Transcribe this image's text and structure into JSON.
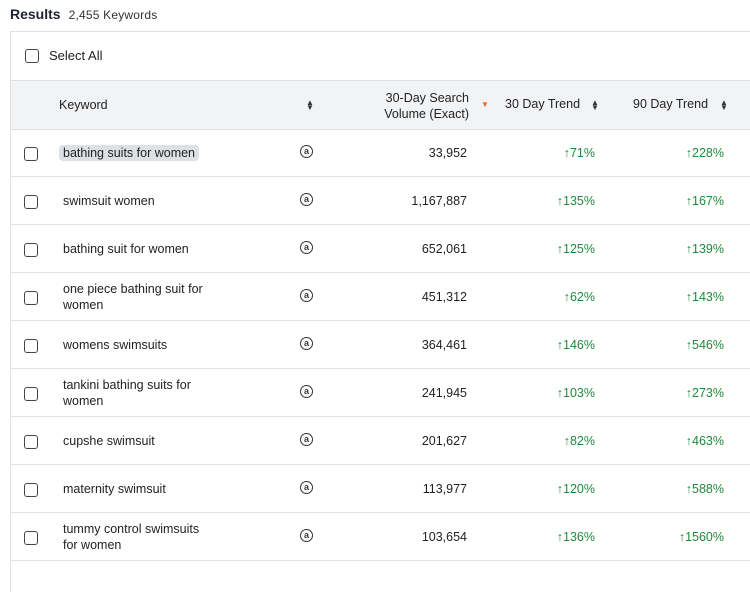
{
  "header": {
    "title": "Results",
    "count": "2,455 Keywords"
  },
  "select_all_label": "Select All",
  "columns": {
    "keyword": "Keyword",
    "volume_line1": "30-Day Search",
    "volume_line2": "Volume (Exact)",
    "trend30": "30 Day Trend",
    "trend90": "90 Day Trend"
  },
  "icons": {
    "sort": "sort-icon",
    "amazon": "amazon-icon",
    "trend_up": "arrow-up-icon"
  },
  "colors": {
    "trend_up": "#1f8a3c",
    "active_sort": "#e8692b",
    "header_bg": "#f2f3f5"
  },
  "rows": [
    {
      "keyword": "bathing suits for women",
      "volume": "33,952",
      "trend30": "71%",
      "trend90": "228%"
    },
    {
      "keyword": "swimsuit women",
      "volume": "1,167,887",
      "trend30": "135%",
      "trend90": "167%"
    },
    {
      "keyword": "bathing suit for women",
      "volume": "652,061",
      "trend30": "125%",
      "trend90": "139%"
    },
    {
      "keyword_line1": "one piece bathing suit for",
      "keyword_line2": "women",
      "volume": "451,312",
      "trend30": "62%",
      "trend90": "143%"
    },
    {
      "keyword": "womens swimsuits",
      "volume": "364,461",
      "trend30": "146%",
      "trend90": "546%"
    },
    {
      "keyword_line1": "tankini bathing suits for",
      "keyword_line2": "women",
      "volume": "241,945",
      "trend30": "103%",
      "trend90": "273%"
    },
    {
      "keyword": "cupshe swimsuit",
      "volume": "201,627",
      "trend30": "82%",
      "trend90": "463%"
    },
    {
      "keyword": "maternity swimsuit",
      "volume": "113,977",
      "trend30": "120%",
      "trend90": "588%"
    },
    {
      "keyword_line1": "tummy control swimsuits",
      "keyword_line2": "for women",
      "volume": "103,654",
      "trend30": "136%",
      "trend90": "1560%"
    }
  ]
}
